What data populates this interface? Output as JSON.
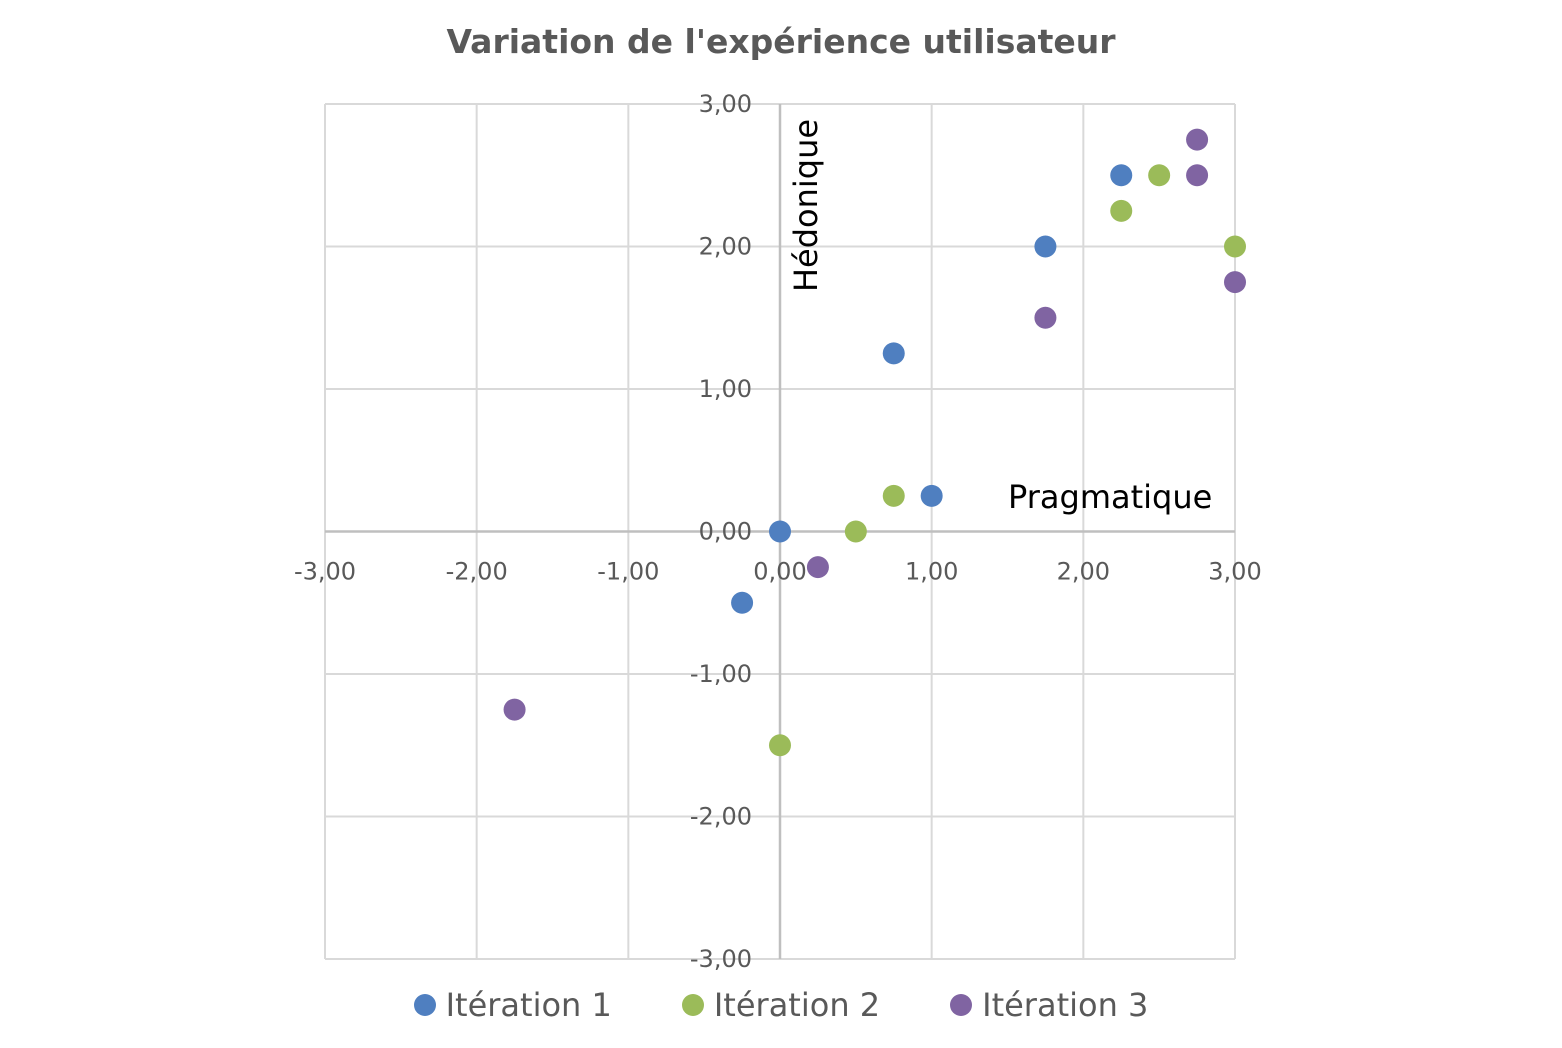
{
  "chart_data": {
    "type": "scatter",
    "title": "Variation de l'expérience utilisateur",
    "xlabel": "Pragmatique",
    "ylabel": "Hédonique",
    "xlim": [
      -3,
      3
    ],
    "ylim": [
      -3,
      3
    ],
    "x_ticks": [
      -3,
      -2,
      -1,
      0,
      1,
      2,
      3
    ],
    "y_ticks": [
      -3,
      -2,
      -1,
      0,
      1,
      2,
      3
    ],
    "x_tick_labels": [
      "-3,00",
      "-2,00",
      "-1,00",
      "0,00",
      "1,00",
      "2,00",
      "3,00"
    ],
    "y_tick_labels": [
      "-3,00",
      "-2,00",
      "-1,00",
      "0,00",
      "1,00",
      "2,00",
      "3,00"
    ],
    "grid": true,
    "legend_position": "bottom",
    "series": [
      {
        "name": "Itération 1",
        "color": "#4f7fc0",
        "points": [
          [
            0,
            0
          ],
          [
            -0.25,
            -0.5
          ],
          [
            0.75,
            1.25
          ],
          [
            1,
            0.25
          ],
          [
            1.75,
            2
          ],
          [
            2.25,
            2.5
          ]
        ]
      },
      {
        "name": "Itération 2",
        "color": "#9bbb59",
        "points": [
          [
            0,
            -1.5
          ],
          [
            0.5,
            0
          ],
          [
            0.75,
            0.25
          ],
          [
            2.25,
            2.25
          ],
          [
            2.5,
            2.5
          ],
          [
            3,
            2
          ]
        ]
      },
      {
        "name": "Itération 3",
        "color": "#8064a2",
        "points": [
          [
            -1.75,
            -1.25
          ],
          [
            0.25,
            -0.25
          ],
          [
            1.75,
            1.5
          ],
          [
            2.75,
            2.75
          ],
          [
            2.75,
            2.5
          ],
          [
            3,
            1.75
          ]
        ]
      }
    ]
  }
}
